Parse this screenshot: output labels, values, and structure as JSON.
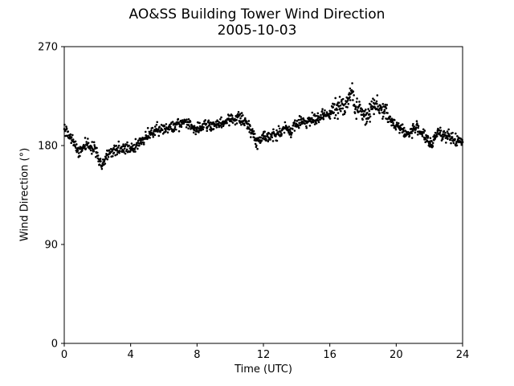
{
  "chart_data": {
    "type": "scatter",
    "title": "AO&SS Building Tower Wind Direction",
    "subtitle": "2005-10-03",
    "xlabel": "Time (UTC)",
    "ylabel": "Wind Direction (°)",
    "xlim": [
      0,
      24
    ],
    "ylim": [
      0,
      270
    ],
    "xticks": [
      0,
      4,
      8,
      12,
      16,
      20,
      24
    ],
    "yticks": [
      0,
      90,
      180,
      270
    ],
    "grid": false,
    "marker_color": "#000000",
    "series": [
      {
        "points": [
          [
            0.0,
            195
          ],
          [
            0.15,
            192
          ],
          [
            0.3,
            188
          ],
          [
            0.5,
            184
          ],
          [
            0.7,
            178
          ],
          [
            0.9,
            173
          ],
          [
            1.0,
            176
          ],
          [
            1.2,
            180
          ],
          [
            1.4,
            182
          ],
          [
            1.6,
            179
          ],
          [
            1.8,
            178
          ],
          [
            2.0,
            172
          ],
          [
            2.1,
            167
          ],
          [
            2.25,
            162
          ],
          [
            2.4,
            166
          ],
          [
            2.6,
            172
          ],
          [
            2.8,
            174
          ],
          [
            3.0,
            176
          ],
          [
            3.3,
            178
          ],
          [
            3.6,
            176
          ],
          [
            3.8,
            179
          ],
          [
            4.0,
            178
          ],
          [
            4.2,
            177
          ],
          [
            4.5,
            182
          ],
          [
            4.8,
            186
          ],
          [
            5.0,
            189
          ],
          [
            5.3,
            193
          ],
          [
            5.6,
            195
          ],
          [
            6.0,
            195
          ],
          [
            6.3,
            196
          ],
          [
            6.6,
            197
          ],
          [
            7.0,
            199
          ],
          [
            7.3,
            202
          ],
          [
            7.5,
            200
          ],
          [
            7.8,
            196
          ],
          [
            8.0,
            195
          ],
          [
            8.3,
            197
          ],
          [
            8.6,
            199
          ],
          [
            9.0,
            197
          ],
          [
            9.3,
            199
          ],
          [
            9.6,
            201
          ],
          [
            10.0,
            204
          ],
          [
            10.3,
            205
          ],
          [
            10.6,
            205
          ],
          [
            10.9,
            201
          ],
          [
            11.2,
            197
          ],
          [
            11.4,
            189
          ],
          [
            11.6,
            183
          ],
          [
            11.8,
            186
          ],
          [
            12.0,
            189
          ],
          [
            12.3,
            189
          ],
          [
            12.6,
            189
          ],
          [
            13.0,
            192
          ],
          [
            13.3,
            196
          ],
          [
            13.6,
            193
          ],
          [
            14.0,
            199
          ],
          [
            14.3,
            203
          ],
          [
            14.6,
            202
          ],
          [
            15.0,
            203
          ],
          [
            15.3,
            204
          ],
          [
            15.6,
            207
          ],
          [
            16.0,
            209
          ],
          [
            16.2,
            212
          ],
          [
            16.5,
            214
          ],
          [
            16.8,
            217
          ],
          [
            17.0,
            219
          ],
          [
            17.2,
            224
          ],
          [
            17.35,
            230
          ],
          [
            17.5,
            216
          ],
          [
            17.7,
            213
          ],
          [
            18.0,
            210
          ],
          [
            18.2,
            204
          ],
          [
            18.4,
            212
          ],
          [
            18.7,
            219
          ],
          [
            19.0,
            214
          ],
          [
            19.3,
            212
          ],
          [
            19.6,
            203
          ],
          [
            19.9,
            200
          ],
          [
            20.2,
            197
          ],
          [
            20.5,
            192
          ],
          [
            20.8,
            190
          ],
          [
            21.0,
            195
          ],
          [
            21.3,
            196
          ],
          [
            21.6,
            191
          ],
          [
            21.9,
            184
          ],
          [
            22.1,
            180
          ],
          [
            22.3,
            186
          ],
          [
            22.5,
            194
          ],
          [
            22.8,
            190
          ],
          [
            23.1,
            188
          ],
          [
            23.4,
            186
          ],
          [
            23.7,
            184
          ],
          [
            24.0,
            183
          ]
        ]
      }
    ]
  }
}
